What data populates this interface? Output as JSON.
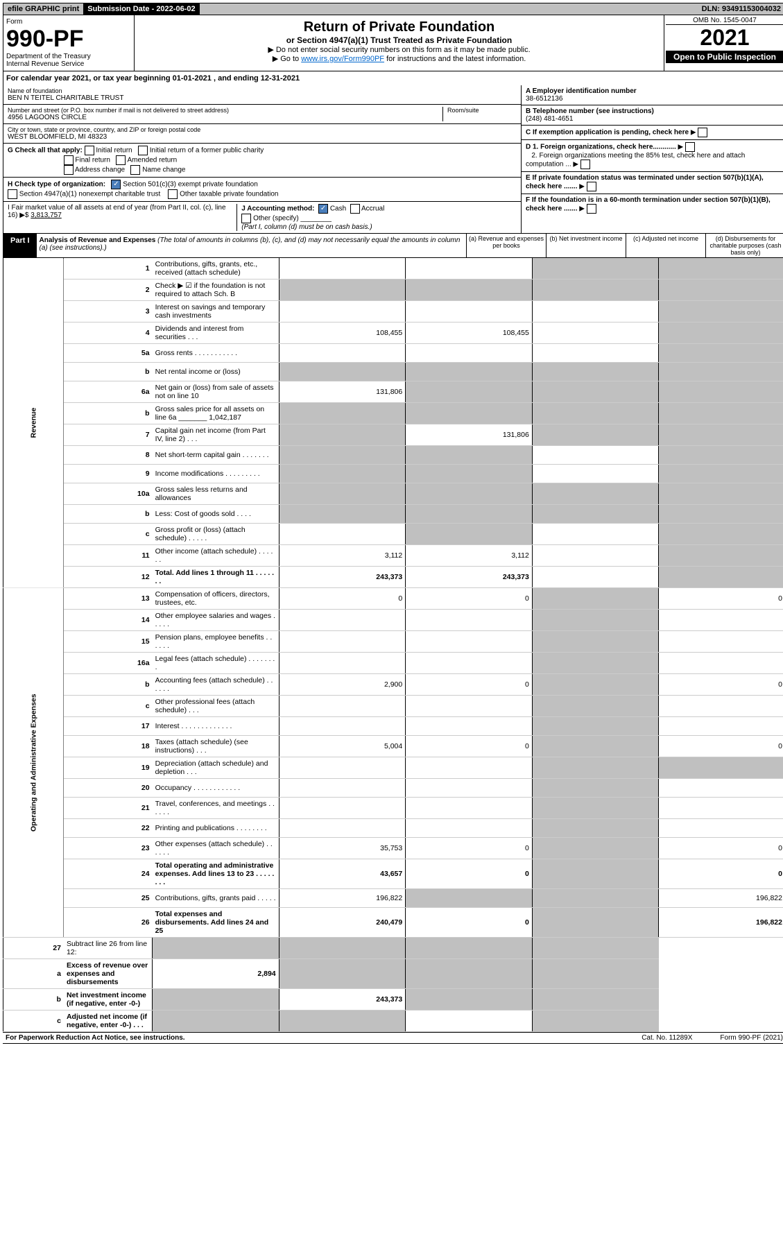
{
  "topbar": {
    "efile": "efile GRAPHIC print",
    "submission_label": "Submission Date - 2022-06-02",
    "dln": "DLN: 93491153004032"
  },
  "header": {
    "form_word": "Form",
    "form_number": "990-PF",
    "dept1": "Department of the Treasury",
    "dept2": "Internal Revenue Service",
    "title": "Return of Private Foundation",
    "subtitle": "or Section 4947(a)(1) Trust Treated as Private Foundation",
    "note1": "▶ Do not enter social security numbers on this form as it may be made public.",
    "note2_pre": "▶ Go to ",
    "note2_link": "www.irs.gov/Form990PF",
    "note2_post": " for instructions and the latest information.",
    "omb": "OMB No. 1545-0047",
    "year": "2021",
    "open": "Open to Public Inspection"
  },
  "cal_year": "For calendar year 2021, or tax year beginning 01-01-2021              , and ending 12-31-2021",
  "entity": {
    "name_lbl": "Name of foundation",
    "name": "BEN N TEITEL CHARITABLE TRUST",
    "addr_lbl": "Number and street (or P.O. box number if mail is not delivered to street address)",
    "addr": "4956 LAGOONS CIRCLE",
    "room_lbl": "Room/suite",
    "city_lbl": "City or town, state or province, country, and ZIP or foreign postal code",
    "city": "WEST BLOOMFIELD, MI  48323",
    "A_lbl": "A Employer identification number",
    "A_val": "38-6512136",
    "B_lbl": "B Telephone number (see instructions)",
    "B_val": "(248) 481-4651",
    "C_lbl": "C If exemption application is pending, check here",
    "D1_lbl": "D 1. Foreign organizations, check here............",
    "D2_lbl": "2. Foreign organizations meeting the 85% test, check here and attach computation ...",
    "E_lbl": "E  If private foundation status was terminated under section 507(b)(1)(A), check here .......",
    "F_lbl": "F  If the foundation is in a 60-month termination under section 507(b)(1)(B), check here .......",
    "G_lbl": "G Check all that apply:",
    "G_opts": [
      "Initial return",
      "Initial return of a former public charity",
      "Final return",
      "Amended return",
      "Address change",
      "Name change"
    ],
    "H_lbl": "H Check type of organization:",
    "H1": "Section 501(c)(3) exempt private foundation",
    "H2": "Section 4947(a)(1) nonexempt charitable trust",
    "H3": "Other taxable private foundation",
    "I_lbl": "I Fair market value of all assets at end of year (from Part II, col. (c), line 16) ▶$",
    "I_val": "3,813,757",
    "J_lbl": "J Accounting method:",
    "J_cash": "Cash",
    "J_accrual": "Accrual",
    "J_other": "Other (specify)",
    "J_note": "(Part I, column (d) must be on cash basis.)"
  },
  "part1": {
    "label": "Part I",
    "title": "Analysis of Revenue and Expenses",
    "title_note": "(The total of amounts in columns (b), (c), and (d) may not necessarily equal the amounts in column (a) (see instructions).)",
    "col_a": "(a)   Revenue and expenses per books",
    "col_b": "(b)   Net investment income",
    "col_c": "(c)   Adjusted net income",
    "col_d": "(d)   Disbursements for charitable purposes (cash basis only)"
  },
  "side": {
    "rev": "Revenue",
    "exp": "Operating and Administrative Expenses"
  },
  "rows": [
    {
      "n": "1",
      "d": "Contributions, gifts, grants, etc., received (attach schedule)",
      "a": "",
      "b": "",
      "c": "g",
      "dd": "g"
    },
    {
      "n": "2",
      "d": "Check ▶ ☑ if the foundation is not required to attach Sch. B",
      "a": "g",
      "b": "g",
      "c": "g",
      "dd": "g"
    },
    {
      "n": "3",
      "d": "Interest on savings and temporary cash investments",
      "a": "",
      "b": "",
      "c": "",
      "dd": "g"
    },
    {
      "n": "4",
      "d": "Dividends and interest from securities    .   .   .",
      "a": "108,455",
      "b": "108,455",
      "c": "",
      "dd": "g"
    },
    {
      "n": "5a",
      "d": "Gross rents    .   .   .   .   .   .   .   .   .   .   .",
      "a": "",
      "b": "",
      "c": "",
      "dd": "g"
    },
    {
      "n": "b",
      "d": "Net rental income or (loss)  ",
      "a": "g",
      "b": "g",
      "c": "g",
      "dd": "g"
    },
    {
      "n": "6a",
      "d": "Net gain or (loss) from sale of assets not on line 10",
      "a": "131,806",
      "b": "g",
      "c": "g",
      "dd": "g"
    },
    {
      "n": "b",
      "d": "Gross sales price for all assets on line 6a _______ 1,042,187",
      "a": "g",
      "b": "g",
      "c": "g",
      "dd": "g"
    },
    {
      "n": "7",
      "d": "Capital gain net income (from Part IV, line 2)   .   .   .",
      "a": "g",
      "b": "131,806",
      "c": "g",
      "dd": "g"
    },
    {
      "n": "8",
      "d": "Net short-term capital gain   .   .   .   .   .   .   .",
      "a": "g",
      "b": "g",
      "c": "",
      "dd": "g"
    },
    {
      "n": "9",
      "d": "Income modifications  .   .   .   .   .   .   .   .   .",
      "a": "g",
      "b": "g",
      "c": "",
      "dd": "g"
    },
    {
      "n": "10a",
      "d": "Gross sales less returns and allowances",
      "a": "g",
      "b": "g",
      "c": "g",
      "dd": "g"
    },
    {
      "n": "b",
      "d": "Less: Cost of goods sold    .   .   .   .",
      "a": "g",
      "b": "g",
      "c": "g",
      "dd": "g"
    },
    {
      "n": "c",
      "d": "Gross profit or (loss) (attach schedule)    .   .   .   .   .",
      "a": "",
      "b": "g",
      "c": "",
      "dd": "g"
    },
    {
      "n": "11",
      "d": "Other income (attach schedule)    .   .   .   .   .   .",
      "a": "3,112",
      "b": "3,112",
      "c": "",
      "dd": "g"
    },
    {
      "n": "12",
      "d": "Total. Add lines 1 through 11   .   .   .   .   .   .   .",
      "a": "243,373",
      "b": "243,373",
      "c": "",
      "dd": "g",
      "bold": true
    }
  ],
  "exp_rows": [
    {
      "n": "13",
      "d": "Compensation of officers, directors, trustees, etc.",
      "a": "0",
      "b": "0",
      "c": "g",
      "dd": "0"
    },
    {
      "n": "14",
      "d": "Other employee salaries and wages   .   .   .   .   .",
      "a": "",
      "b": "",
      "c": "g",
      "dd": ""
    },
    {
      "n": "15",
      "d": "Pension plans, employee benefits   .   .   .   .   .   .",
      "a": "",
      "b": "",
      "c": "g",
      "dd": ""
    },
    {
      "n": "16a",
      "d": "Legal fees (attach schedule)  .   .   .   .   .   .   .   .",
      "a": "",
      "b": "",
      "c": "g",
      "dd": ""
    },
    {
      "n": "b",
      "d": "Accounting fees (attach schedule)  .   .   .   .   .   .",
      "a": "2,900",
      "b": "0",
      "c": "g",
      "dd": "0"
    },
    {
      "n": "c",
      "d": "Other professional fees (attach schedule)    .   .   .",
      "a": "",
      "b": "",
      "c": "g",
      "dd": ""
    },
    {
      "n": "17",
      "d": "Interest  .   .   .   .   .   .   .   .   .   .   .   .   .",
      "a": "",
      "b": "",
      "c": "g",
      "dd": ""
    },
    {
      "n": "18",
      "d": "Taxes (attach schedule) (see instructions)    .   .   .",
      "a": "5,004",
      "b": "0",
      "c": "g",
      "dd": "0"
    },
    {
      "n": "19",
      "d": "Depreciation (attach schedule) and depletion   .   .   .",
      "a": "",
      "b": "",
      "c": "g",
      "dd": "g"
    },
    {
      "n": "20",
      "d": "Occupancy  .   .   .   .   .   .   .   .   .   .   .   .",
      "a": "",
      "b": "",
      "c": "g",
      "dd": ""
    },
    {
      "n": "21",
      "d": "Travel, conferences, and meetings  .   .   .   .   .   .",
      "a": "",
      "b": "",
      "c": "g",
      "dd": ""
    },
    {
      "n": "22",
      "d": "Printing and publications  .   .   .   .   .   .   .   .",
      "a": "",
      "b": "",
      "c": "g",
      "dd": ""
    },
    {
      "n": "23",
      "d": "Other expenses (attach schedule)  .   .   .   .   .   .",
      "a": "35,753",
      "b": "0",
      "c": "g",
      "dd": "0"
    },
    {
      "n": "24",
      "d": "Total operating and administrative expenses. Add lines 13 to 23   .   .   .   .   .   .   .   .",
      "a": "43,657",
      "b": "0",
      "c": "g",
      "dd": "0",
      "bold": true
    },
    {
      "n": "25",
      "d": "Contributions, gifts, grants paid     .   .   .   .   .",
      "a": "196,822",
      "b": "g",
      "c": "g",
      "dd": "196,822"
    },
    {
      "n": "26",
      "d": "Total expenses and disbursements. Add lines 24 and 25",
      "a": "240,479",
      "b": "0",
      "c": "g",
      "dd": "196,822",
      "bold": true
    }
  ],
  "net_rows": [
    {
      "n": "27",
      "d": "Subtract line 26 from line 12:",
      "a": "g",
      "b": "g",
      "c": "g",
      "dd": "g"
    },
    {
      "n": "a",
      "d": "Excess of revenue over expenses and disbursements",
      "a": "2,894",
      "b": "g",
      "c": "g",
      "dd": "g",
      "bold": true
    },
    {
      "n": "b",
      "d": "Net investment income (if negative, enter -0-)",
      "a": "g",
      "b": "243,373",
      "c": "g",
      "dd": "g",
      "bold": true
    },
    {
      "n": "c",
      "d": "Adjusted net income (if negative, enter -0-)   .   .   .",
      "a": "g",
      "b": "g",
      "c": "",
      "dd": "g",
      "bold": true
    }
  ],
  "footer": {
    "pra": "For Paperwork Reduction Act Notice, see instructions.",
    "cat": "Cat. No. 11289X",
    "form": "Form 990-PF (2021)"
  }
}
